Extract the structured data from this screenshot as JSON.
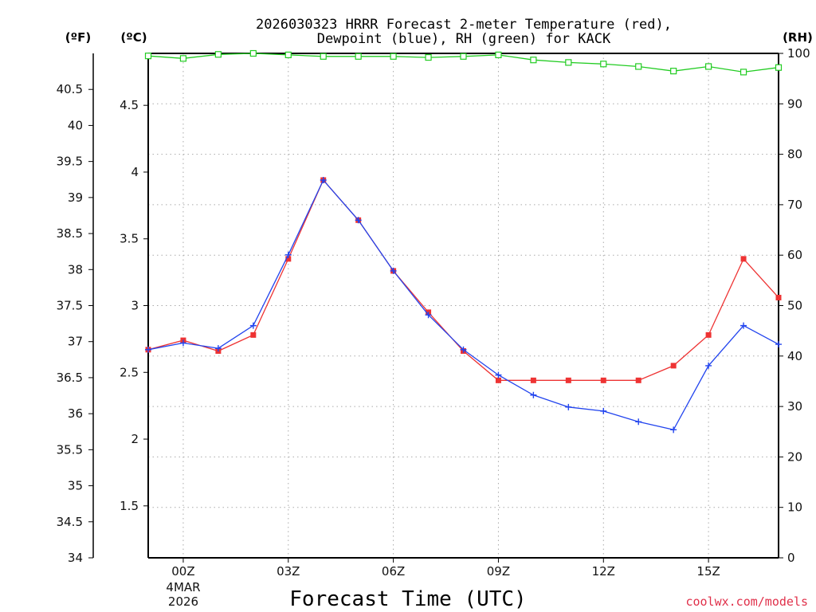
{
  "chart_data": {
    "type": "line",
    "title": [
      "2026030323 HRRR Forecast 2-meter Temperature (red),",
      "Dewpoint (blue), RH (green) for KACK"
    ],
    "xlabel": "Forecast Time (UTC)",
    "x_hours": [
      -1,
      0,
      1,
      2,
      3,
      4,
      5,
      6,
      7,
      8,
      9,
      10,
      11,
      12,
      13,
      14,
      15,
      16,
      17
    ],
    "x_ticks": [
      {
        "hour": 0,
        "label": "00Z"
      },
      {
        "hour": 3,
        "label": "03Z"
      },
      {
        "hour": 6,
        "label": "06Z"
      },
      {
        "hour": 9,
        "label": "09Z"
      },
      {
        "hour": 12,
        "label": "12Z"
      },
      {
        "hour": 15,
        "label": "15Z"
      }
    ],
    "date_label": [
      "4MAR",
      "2026"
    ],
    "left_axis_f": {
      "unit": "(ºF)",
      "range": [
        34,
        41
      ],
      "ticks": [
        "34",
        "34.5",
        "35",
        "35.5",
        "36",
        "36.5",
        "37",
        "37.5",
        "38",
        "38.5",
        "39",
        "39.5",
        "40",
        "40.5"
      ]
    },
    "left_axis_c": {
      "unit": "(ºC)",
      "range": [
        1.111,
        4.889
      ],
      "ticks": [
        "1.5",
        "2",
        "2.5",
        "3",
        "3.5",
        "4",
        "4.5"
      ]
    },
    "right_axis_rh": {
      "unit": "(RH)",
      "range": [
        0,
        100
      ],
      "ticks": [
        "0",
        "10",
        "20",
        "30",
        "40",
        "50",
        "60",
        "70",
        "80",
        "90",
        "100"
      ]
    },
    "series": [
      {
        "name": "Temperature",
        "unit": "C",
        "color": "#ee3333",
        "marker": "square-filled",
        "values": [
          2.67,
          2.74,
          2.66,
          2.78,
          3.35,
          3.94,
          3.64,
          3.26,
          2.95,
          2.66,
          2.44,
          2.44,
          2.44,
          2.44,
          2.44,
          2.55,
          2.78,
          3.35,
          3.06
        ]
      },
      {
        "name": "Dewpoint",
        "unit": "C",
        "color": "#2244ee",
        "marker": "plus",
        "values": [
          2.67,
          2.72,
          2.68,
          2.85,
          3.38,
          3.94,
          3.64,
          3.26,
          2.93,
          2.67,
          2.48,
          2.33,
          2.24,
          2.21,
          2.13,
          2.07,
          2.55,
          2.85,
          2.71
        ]
      },
      {
        "name": "RH",
        "unit": "%",
        "color": "#22cc22",
        "marker": "square-open",
        "values": [
          99.5,
          99.0,
          99.8,
          100.0,
          99.7,
          99.4,
          99.4,
          99.4,
          99.2,
          99.4,
          99.7,
          98.7,
          98.2,
          97.9,
          97.4,
          96.5,
          97.4,
          96.3,
          97.2
        ]
      }
    ]
  },
  "credit": "coolwx.com/models"
}
